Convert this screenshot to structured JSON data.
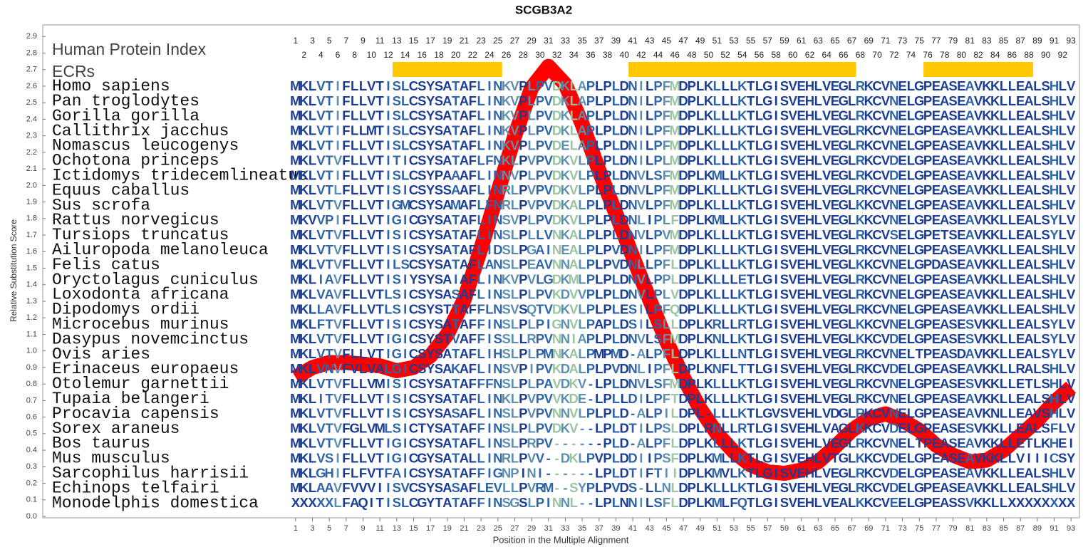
{
  "chart_data": {
    "type": "line",
    "title": "SCGB3A2",
    "y_label": "Relative Substitution Score",
    "x_label": "Position in the Multiple Alignment",
    "index_label": "Human Protein Index",
    "ecr_label": "ECRs",
    "xlim": [
      -29,
      94
    ],
    "ylim": [
      0,
      2.97
    ],
    "xticks": [
      1,
      3,
      5,
      7,
      9,
      11,
      13,
      15,
      17,
      19,
      21,
      23,
      25,
      27,
      29,
      31,
      33,
      35,
      37,
      39,
      41,
      43,
      45,
      47,
      49,
      51,
      53,
      55,
      57,
      59,
      61,
      63,
      65,
      67,
      69,
      71,
      73,
      75,
      77,
      79,
      81,
      83,
      85,
      87,
      89,
      91,
      93
    ],
    "yticks": [
      {
        "value": 0,
        "label": "0.0"
      },
      {
        "value": 0.1,
        "label": "0.1"
      },
      {
        "value": 0.2,
        "label": "0.2"
      },
      {
        "value": 0.3,
        "label": "0.3"
      },
      {
        "value": 0.4,
        "label": "0.4"
      },
      {
        "value": 0.5,
        "label": "0.5"
      },
      {
        "value": 0.6,
        "label": "0.6"
      },
      {
        "value": 0.7,
        "label": "0.7"
      },
      {
        "value": 0.8,
        "label": "0.8"
      },
      {
        "value": 0.9,
        "label": "0.9"
      },
      {
        "value": 1,
        "label": "1.0"
      },
      {
        "value": 1.1,
        "label": "1.1"
      },
      {
        "value": 1.2,
        "label": "1.2"
      },
      {
        "value": 1.3,
        "label": "1.3"
      },
      {
        "value": 1.4,
        "label": "1.4"
      },
      {
        "value": 1.5,
        "label": "1.5"
      },
      {
        "value": 1.6,
        "label": "1.6"
      },
      {
        "value": 1.7,
        "label": "1.7"
      },
      {
        "value": 1.8,
        "label": "1.8"
      },
      {
        "value": 1.9,
        "label": "1.9"
      },
      {
        "value": 2,
        "label": "2.0"
      },
      {
        "value": 2.1,
        "label": "2.1"
      },
      {
        "value": 2.2,
        "label": "2.2"
      },
      {
        "value": 2.3,
        "label": "2.3"
      },
      {
        "value": 2.4,
        "label": "2.4"
      },
      {
        "value": 2.5,
        "label": "2.5"
      },
      {
        "value": 2.6,
        "label": "2.6"
      },
      {
        "value": 2.7,
        "label": "2.7"
      },
      {
        "value": 2.8,
        "label": "2.8"
      },
      {
        "value": 2.9,
        "label": "2.9"
      }
    ],
    "positions": [
      1,
      2,
      3,
      4,
      5,
      6,
      7,
      8,
      9,
      10,
      11,
      12,
      13,
      14,
      15,
      16,
      17,
      18,
      19,
      20,
      21,
      22,
      23,
      24,
      25,
      26,
      27,
      28,
      29,
      30,
      31,
      32,
      33,
      34,
      35,
      36,
      37,
      38,
      39,
      40,
      41,
      42,
      43,
      44,
      45,
      46,
      47,
      48,
      49,
      50,
      51,
      52,
      53,
      54,
      55,
      56,
      57,
      58,
      59,
      60,
      61,
      62,
      63,
      64,
      65,
      66,
      67,
      68,
      69,
      70,
      71,
      72,
      73,
      74,
      75,
      76,
      77,
      78,
      79,
      80,
      81,
      82,
      83,
      84,
      85,
      86,
      87,
      88,
      89,
      90,
      91,
      92,
      93
    ],
    "ecr_color": "#ffc800",
    "ecrs": [
      {
        "start": 13,
        "end": 25
      },
      {
        "start": 41,
        "end": 67
      },
      {
        "start": 76,
        "end": 88
      }
    ],
    "x": [
      1,
      3,
      5,
      7,
      9,
      11,
      13,
      15,
      17,
      19,
      21,
      23,
      25,
      27,
      29,
      31,
      33,
      35,
      37,
      39,
      41,
      43,
      45,
      47,
      49,
      51,
      53,
      55,
      57,
      59,
      61,
      63,
      65,
      67,
      69,
      71,
      73,
      75,
      77,
      79,
      81,
      83,
      85,
      87,
      89,
      91,
      93
    ],
    "series": [
      {
        "color": "#ff0000",
        "values": [
          0.84,
          0.9,
          0.93,
          0.93,
          0.92,
          0.91,
          0.88,
          0.9,
          0.97,
          1.1,
          1.31,
          1.62,
          1.96,
          2.3,
          2.59,
          2.72,
          2.61,
          2.37,
          2.09,
          1.83,
          1.57,
          1.31,
          1.06,
          0.84,
          0.65,
          0.5,
          0.39,
          0.31,
          0.27,
          0.26,
          0.28,
          0.33,
          0.42,
          0.52,
          0.59,
          0.62,
          0.58,
          0.52,
          0.43,
          0.37,
          0.33,
          0.34,
          0.4,
          0.49,
          0.58,
          0.69,
          0.78
        ]
      }
    ],
    "alignment": [
      {
        "species": "Homo sapiens",
        "sequence": "MKLVTIFLLVTISLCSYSATAFLINKVPLPVDKLAPLPLDNILPFMDPLKLLLKTLGISVEHLVEGLRKCVNELGPEASEAVKKLLEALSHLV"
      },
      {
        "species": "Pan troglodytes",
        "sequence": "MKLVTIFLLVTISLCSYSATAFLINKVPLPVDKLAPLPLDNILPFMDPLKLLLKTLGISVEHLVEGLRKCVNELGPEASEAVKKLLEALSHLV"
      },
      {
        "species": "Gorilla gorilla",
        "sequence": "MKLVTIFLLVTISLCSYSATAFLINKVPLPVDKLAPLPLDNILPFMDPLKLLLKTLGISVEHLVEGLRKCVNELGPEASEAVKKLLEALSHLV"
      },
      {
        "species": "Callithrix jacchus",
        "sequence": "MKLVTIFLLMTISLCSYSATAFLINKVPLPVDKLAPLPLDNILPFMDPLKLLLKTLGISVEHLVEGLRKCVNELGPEASEAVKKLLEALSHLV"
      },
      {
        "species": "Nomascus leucogenys",
        "sequence": "MKLVTIFLLVTISLCSYSATAFLINKVPLPVDELAPLPLDNILPFMDPLKLLLKTLGISVEHLVEGLRKCVNELGPEASEAVKKLLEALSHLV"
      },
      {
        "species": "Ochotona princeps",
        "sequence": "MKLVTVFLLVTITICSYSATAFLFNKLPVPVDKVLPLPLDNILPLMDPLKLLLKTLGISVEHLVEGLRKCVDELGPEASEAVKKLLEALSHLV"
      },
      {
        "species": "Ictidomys tridecemlineatus",
        "sequence": "MKLVTIFLLVTISLCSYPAAAFLINNVPLPVDKVLPLPLDNVLSFMDPLKMLLKTLGISVEHLVEGLRKCVDELGPEASEAVKKLLEALSHLV"
      },
      {
        "species": "Equus caballus",
        "sequence": "MKLVTLFLLVTISICSYSSAAFLINRLPVPVDKVLPLPLDNVLPFMDPLKLLLKTLGISVEHLVEGLRKCVNELGPEASEAVKKLLEALSHLV"
      },
      {
        "species": "Sus scrofa",
        "sequence": "MKLVTVFLLVTIGMCSYSAMAFLFNRLPVPVDKALPLPLDNVLPFMDPLKLLLKTLGISVEHLVEGLKKCVNELGPEASEAVKKLLEALSHLV"
      },
      {
        "species": "Rattus norvegicus",
        "sequence": "MKVVPIFLLVTIGICGYSATAFLINSVPLPVDKVLPLPLDNLIPLFDPLKMLLKTLGISVEHLVEGLKKCVNELGPEASEAVKKLLEALSYLV"
      },
      {
        "species": "Tursiops truncatus",
        "sequence": "MKLVTVFLLVTISICSYSATAFLINSLPLLVNKALPLPLDNVLPVMDPLKLLLKTLGISVEHLVEGLRKCVSELGPETSEAVKKLLEALSYLV"
      },
      {
        "species": "Ailuropoda melanoleuca",
        "sequence": "MKLVTVFLLVTISICSYSATAFLIDSLPGAINEALPLPVDNILPFMDPLKLLLKTLGISVEHLVEGLRKCVNELGPEASEAVKKLLEALSHLV"
      },
      {
        "species": "Felis catus",
        "sequence": "MKLVTVFLLVTILSCSYSATAFLANSLPEAVNNALPLPVDNLLPFLDPLKLLLKTLGISVEHLVEGLKKCVNELGPDASEAVKKLLEALSHLV"
      },
      {
        "species": "Oryctolagus cuniculus",
        "sequence": "MKLIAVFLLVTISIYSYSAIAFLINKVPVLGDKMLPLPLDNVLPPLDPLKLLLETLGISVEHLVEGLRKCVNELGPEASEAVKKLLEALSHLV"
      },
      {
        "species": "Loxodonta africana",
        "sequence": "MKLVAVFLLVTLSICSYSASAFLINSLPLPVKDVVPLPLDNVLPLVDPLKLLLKTLGISVEHLVEGLRKCVNELGPEASEAVKKLLEALSHLV"
      },
      {
        "species": "Dipodomys ordii",
        "sequence": "MKLLAVFLLVTLSICSYSTTAFFLNSVSQTVDKVLPLPLESILPFQDPLKLLLKTLGISVEHLVEGLRKCVNELGPEASEAVKKLLEALSHLV"
      },
      {
        "species": "Microcebus murinus",
        "sequence": "MKLFTVFLLVTISICSYSATAFFINSLPLPIGNVLPAPLDSILSLLDPLKRLLRTLGISVEHLVEGLKKCVNELGPEASESVKKLLEALSYLV"
      },
      {
        "species": "Dasypus novemcinctus",
        "sequence": "MKLVTVFLLVTIGICSYSTVAFFISSLLRPVNNIAPLPLDNVLSFMDPLKNLLKTLGISVEHLVEGLKKCVDELGPEASESVKKLLEALSYLV"
      },
      {
        "species": "Ovis aries",
        "sequence": "MKLVTVFLLVTIGICSYSATAFLIHSLPLPMNKALPMPMD-ALPFLDPLKLLLNTLGISVEHLVEGLRKCVNELTPEASDAVKKLLEALSYLV"
      },
      {
        "species": "Erinaceus europaeus",
        "sequence": "MKLVNVFVLVALGICSYSAKAFLINSVPIPVKDALPLPVDNLIPFLDPLKNFLTTLGISVEHLVEGLRKCVDELGPEASEAVKKLLRALSHLV"
      },
      {
        "species": "Otolemur garnettii",
        "sequence": "MKLVTVFLLVMISICSYSATAFFFNSLPLPAVDKV-LPLDNVLSFMDPLKLLLKTLGISVEHLVEGLRKCVNELGPEASESVKKLLETLSHLV"
      },
      {
        "species": "Tupaia belangeri",
        "sequence": "MKLITVFLLVTISICSYSATAFLINKLPVPVVKDE-LPLLDILPFTDPLKLLLKTLGISVEHLVEGLRKCVNELGPEASEAVKKLLEALSHLV"
      },
      {
        "species": "Procavia capensis",
        "sequence": "MKLVTVFLLVTISICSYSASAFLINSLPVPVNNVLPLPLD-ALPILDPL-LLLKTLGVSVEHLVDGLRKCVNELGPEASEAVKNLLEAVSHLV"
      },
      {
        "species": "Sorex araneus",
        "sequence": "MKLVTVFGLVMLSICTYSATAFFINSLPLPVDKV--LPLDTILPSLDPLRNLLRTLGISVEHLVAGLKKCVDELGPEASESVKKLLEALSFLV"
      },
      {
        "species": "Bos taurus",
        "sequence": "MKLVTVFLLVTIGICSYSATAFLINSLPRPV------PLD-ALPFLDPLKLLLKTLGISVEHLVEGLRKCVNELTPEASEAVKKLLETLKHEI"
      },
      {
        "species": "Mus musculus",
        "sequence": "MKLVSIFLLVTIGICGYSATALLINRLPVV--DKLPVPLDDIIPSFDPLKMLLKTLGISVEHLVTGLKKCVDELGPEASEAVKKLLVIIICSY"
      },
      {
        "species": "Sarcophilus harrisii",
        "sequence": "MKLGHIFLFVTFAICSYSATAFFIGNPINI------LPLDTIFTIIDPLKMVLKTLGISVEHLVEGLRKCVDELGPEASEAVKKLLEALSHLV"
      },
      {
        "species": "Echinops telfairi",
        "sequence": "MKLAAVFVVVIISVCSYSASAFLEVLLPVRM--SYPLPVDS-LLNLDPLKLLLKTLGISVEHLVEGLRKCVDELGPEASEAVKKLLEALSHLV"
      },
      {
        "species": "Monodelphis domestica",
        "sequence": "XXXXXLFAQITISLCGYTATAFFINSGSLPINNL--LPLNNILSFLDPLKMLFQTLGISVEHLVEALKKCVEELGPEASSVKKLLXXXXXXXX"
      }
    ]
  }
}
